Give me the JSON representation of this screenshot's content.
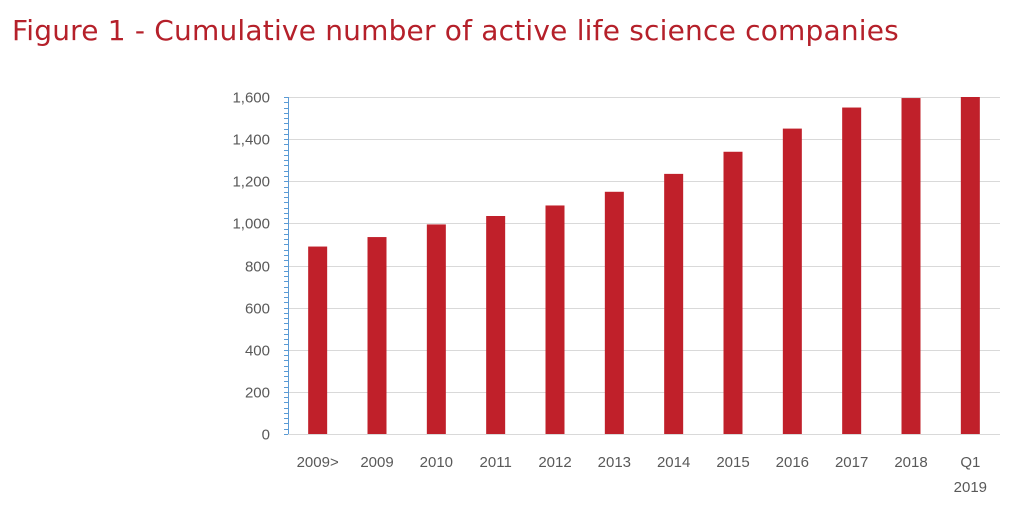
{
  "chart_data": {
    "type": "bar",
    "title": "Figure 1 - Cumulative number of active life science companies",
    "categories": [
      "2009>",
      "2009",
      "2010",
      "2011",
      "2012",
      "2013",
      "2014",
      "2015",
      "2016",
      "2017",
      "2018",
      "Q1 2019"
    ],
    "values": [
      890,
      935,
      995,
      1035,
      1085,
      1150,
      1235,
      1340,
      1450,
      1550,
      1595,
      1600
    ],
    "ylim": [
      0,
      1600
    ],
    "yticks": [
      0,
      200,
      400,
      600,
      800,
      1000,
      1200,
      1400,
      1600
    ],
    "ytick_labels": [
      "0",
      "200",
      "400",
      "600",
      "800",
      "1,000",
      "1,200",
      "1,400",
      "1,600"
    ],
    "grid": true,
    "colors": {
      "bar": "#c0202a",
      "title": "#b5202a",
      "grid": "#d9d9d9",
      "axis": "#5b9bd5",
      "tick_text": "#595959"
    }
  }
}
